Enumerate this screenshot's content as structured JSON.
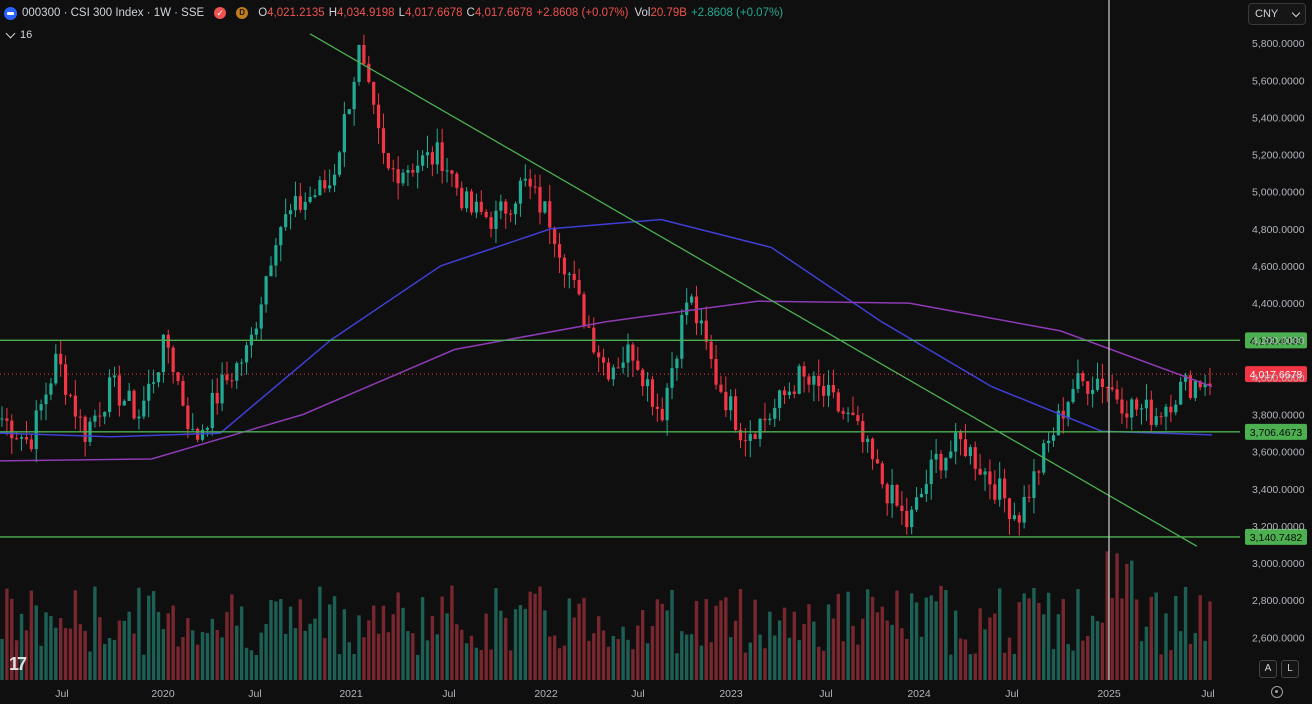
{
  "header": {
    "symbol": "000300 · CSI 300 Index · 1W · SSE",
    "market_icon_glyph": "✓",
    "d_icon_glyph": "D",
    "open_label": "O",
    "open": "4,021.2135",
    "high_label": "H",
    "high": "4,034.9198",
    "low_label": "L",
    "low": "4,017.6678",
    "close_label": "C",
    "close": "4,017.6678",
    "change": "+2.8608 (+0.07%)",
    "vol_label": "Vol",
    "vol": "20.79B",
    "vol_change": "+2.8608 (+0.07%)"
  },
  "indicator": {
    "count": "16"
  },
  "currency": {
    "value": "CNY"
  },
  "chart_data": {
    "type": "candlestick",
    "timeframe": "1W",
    "y_range": [
      2370000,
      5860000
    ],
    "price_ticks": [
      "5,800.0000",
      "5,600.0000",
      "5,400.0000",
      "5,200.0000",
      "5,000.0000",
      "4,800.0000",
      "4,600.0000",
      "4,400.0000",
      "4,200.0000",
      "4,000.0000",
      "3,800.0000",
      "3,600.0000",
      "3,400.0000",
      "3,200.0000",
      "3,000.0000",
      "2,800.0000",
      "2,600.0000"
    ],
    "time_labels": [
      "Jul",
      "2020",
      "Jul",
      "2021",
      "Jul",
      "2022",
      "Jul",
      "2023",
      "Jul",
      "2024",
      "Jul",
      "2025",
      "Jul"
    ],
    "horizontal_lines": [
      {
        "label": "4,199.4038",
        "value": 4199403.8,
        "color": "#4caf50"
      },
      {
        "label": "3,706.4673",
        "value": 3706467.3,
        "color": "#4caf50"
      },
      {
        "label": "3,140.7482",
        "value": 3140748.2,
        "color": "#4caf50"
      }
    ],
    "last_price": {
      "label": "4,017.6678",
      "value": 4017667.8,
      "color": "#f23645"
    },
    "trendline": {
      "from": {
        "date": "2020-10",
        "value": 5850000
      },
      "to": {
        "date": "2025-08",
        "value": 3090000
      }
    },
    "colors": {
      "up": "#22ab94",
      "down": "#f23645",
      "ma_blue": "#3f3fd6",
      "ma_purple": "#8e3bb5",
      "line_green": "#4caf50"
    },
    "series": [
      {
        "name": "price_close_path",
        "values": [
          3780000,
          3650000,
          4100000,
          3700000,
          3950000,
          3800000,
          4200000,
          3650000,
          3950000,
          4150000,
          4800000,
          4950000,
          5050000,
          5750000,
          5100000,
          5150000,
          5200000,
          4900000,
          4850000,
          5050000,
          4850000,
          4400000,
          4050000,
          4150000,
          3800000,
          4450000,
          4000000,
          3700000,
          3800000,
          4000000,
          3900000,
          3750000,
          3450000,
          3200000,
          3550000,
          3650000,
          3450000,
          3250000,
          3600000,
          3950000,
          4000000,
          3850000,
          3800000,
          3950000,
          4000000
        ]
      },
      {
        "name": "ma_blue",
        "values": [
          3700000,
          3680000,
          3700000,
          4200000,
          4600000,
          4800000,
          4850000,
          4700000,
          4300000,
          3950000,
          3710000,
          3690000
        ]
      },
      {
        "name": "ma_purple",
        "values": [
          3550000,
          3560000,
          3800000,
          4150000,
          4300000,
          4410000,
          4400000,
          4250000,
          3950000
        ]
      }
    ]
  }
}
